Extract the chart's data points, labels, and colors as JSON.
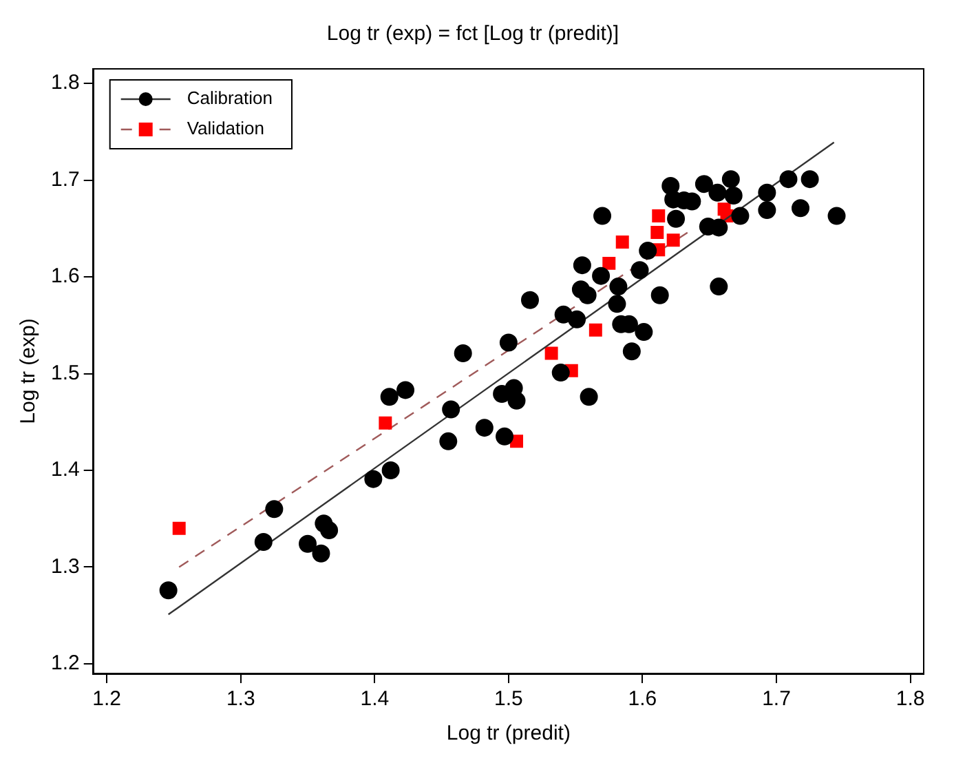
{
  "chart_data": {
    "type": "scatter",
    "title": "Log tr (exp) = fct [Log tr (predit)]",
    "xlabel": "Log tr (predit)",
    "ylabel": "Log tr (exp)",
    "xlim": [
      1.19,
      1.81
    ],
    "ylim": [
      1.19,
      1.815
    ],
    "xticks": [
      1.2,
      1.3,
      1.4,
      1.5,
      1.6,
      1.7,
      1.8
    ],
    "yticks": [
      1.2,
      1.3,
      1.4,
      1.5,
      1.6,
      1.7,
      1.8
    ],
    "grid": false,
    "legend": "top left",
    "series": [
      {
        "name": "Calibration",
        "type": "scatter",
        "marker": "circle",
        "color": "#000000",
        "x": [
          1.246,
          1.317,
          1.325,
          1.35,
          1.36,
          1.362,
          1.366,
          1.399,
          1.412,
          1.411,
          1.423,
          1.455,
          1.457,
          1.466,
          1.482,
          1.495,
          1.497,
          1.5,
          1.504,
          1.506,
          1.516,
          1.539,
          1.541,
          1.551,
          1.555,
          1.554,
          1.559,
          1.56,
          1.569,
          1.57,
          1.581,
          1.582,
          1.584,
          1.59,
          1.597,
          1.601,
          1.592,
          1.598,
          1.604,
          1.609,
          1.613,
          1.621,
          1.623,
          1.625,
          1.631,
          1.637,
          1.646,
          1.649,
          1.656,
          1.657,
          1.657,
          1.666,
          1.668,
          1.673,
          1.693,
          1.693,
          1.709,
          1.718,
          1.725,
          1.745
        ],
        "values": [
          1.276,
          1.326,
          1.36,
          1.324,
          1.314,
          1.345,
          1.338,
          1.391,
          1.4,
          1.476,
          1.483,
          1.43,
          1.463,
          1.521,
          1.444,
          1.479,
          1.435,
          1.532,
          1.485,
          1.472,
          1.576,
          1.501,
          1.561,
          1.556,
          1.612,
          1.587,
          1.581,
          1.476,
          1.601,
          1.663,
          1.572,
          1.59,
          1.551,
          1.551,
          null,
          1.543,
          1.523,
          1.607,
          1.627,
          null,
          1.581,
          1.694,
          1.68,
          1.66,
          1.679,
          1.678,
          1.696,
          1.652,
          1.687,
          1.651,
          1.59,
          1.701,
          1.684,
          1.663,
          1.687,
          1.669,
          1.701,
          1.671,
          1.701,
          1.663
        ]
      },
      {
        "type": "line",
        "line_style": "solid",
        "color": "#333333",
        "x": [
          1.246,
          1.743
        ],
        "values": [
          1.251,
          1.739
        ]
      },
      {
        "name": "Validation",
        "type": "scatter",
        "marker": "square",
        "color": "#ff0000",
        "x": [
          1.254,
          1.408,
          1.506,
          1.532,
          1.547,
          1.565,
          1.575,
          1.585,
          1.612,
          1.611,
          1.612,
          1.623,
          1.661,
          1.663
        ],
        "values": [
          1.34,
          1.449,
          1.43,
          1.521,
          1.503,
          1.545,
          1.614,
          1.636,
          1.663,
          1.646,
          1.628,
          1.638,
          1.67,
          1.663
        ]
      },
      {
        "type": "line",
        "line_style": "dashed",
        "color": "#a05a5a",
        "x": [
          1.254,
          1.636
        ],
        "values": [
          1.3,
          1.648
        ]
      }
    ]
  }
}
